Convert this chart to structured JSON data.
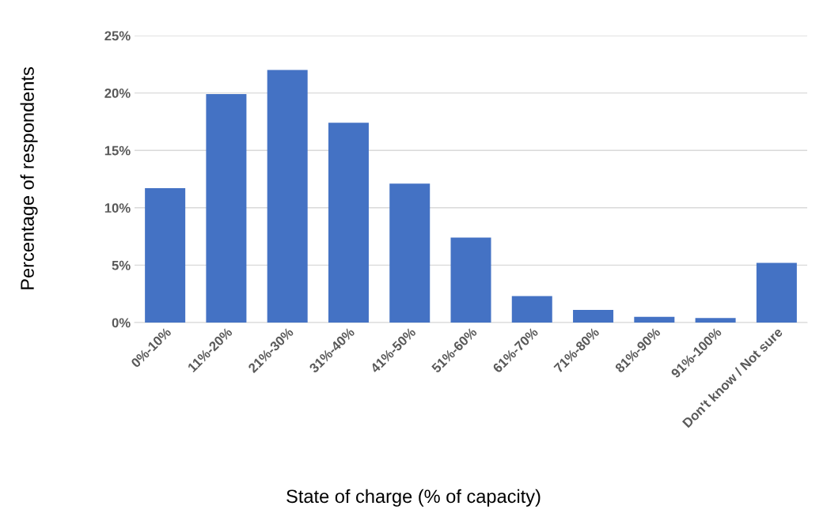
{
  "chart_data": {
    "type": "bar",
    "xlabel": "State of charge (% of capacity)",
    "ylabel": "Percentage of respondents",
    "categories": [
      "0%-10%",
      "11%-20%",
      "21%-30%",
      "31%-40%",
      "41%-50%",
      "51%-60%",
      "61%-70%",
      "71%-80%",
      "81%-90%",
      "91%-100%",
      "Don't know / Not sure"
    ],
    "values": [
      11.7,
      19.9,
      22.0,
      17.4,
      12.1,
      7.4,
      2.3,
      1.1,
      0.5,
      0.4,
      5.2
    ],
    "color": "#4472c4",
    "ylim": [
      0,
      25
    ],
    "yticks": [
      {
        "value": 0,
        "label": "0%"
      },
      {
        "value": 5,
        "label": "5%"
      },
      {
        "value": 10,
        "label": "10%"
      },
      {
        "value": 15,
        "label": "15%"
      },
      {
        "value": 20,
        "label": "20%"
      },
      {
        "value": 25,
        "label": "25%"
      }
    ],
    "grid": "y"
  }
}
